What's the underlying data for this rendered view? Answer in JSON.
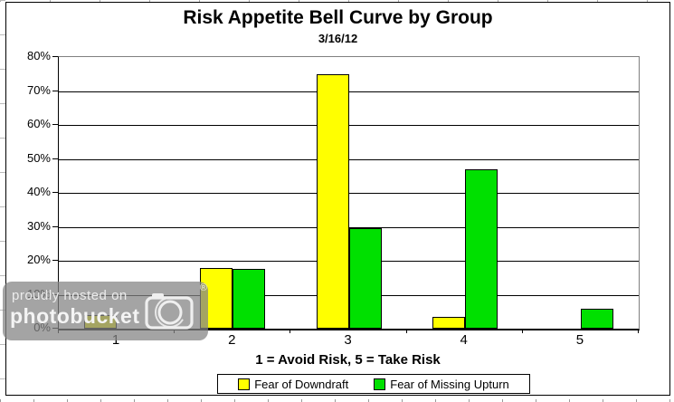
{
  "chart_data": {
    "type": "bar",
    "title": "Risk Appetite Bell Curve by Group",
    "subtitle": "3/16/12",
    "categories": [
      "1",
      "2",
      "3",
      "4",
      "5"
    ],
    "series": [
      {
        "name": "Fear of Downdraft",
        "color": "#FFFF00",
        "values": [
          4,
          18,
          75,
          3.5,
          0
        ]
      },
      {
        "name": "Fear of Missing Upturn",
        "color": "#00E000",
        "values": [
          0,
          17.5,
          29.5,
          47,
          6
        ]
      }
    ],
    "xlabel": "1 = Avoid Risk, 5 = Take Risk",
    "ylabel": "",
    "ylim": [
      0,
      80
    ],
    "ytick_step": 10,
    "ytick_labels": [
      "0%",
      "10%",
      "20%",
      "30%",
      "40%",
      "50%",
      "60%",
      "70%",
      "80%"
    ],
    "grid": true,
    "legend_position": "bottom",
    "gridline_color": "#000000",
    "plot_border_color": "#808080"
  },
  "watermark": {
    "line1": "proudly hosted on",
    "line2": "photobucket",
    "registered": "®"
  }
}
